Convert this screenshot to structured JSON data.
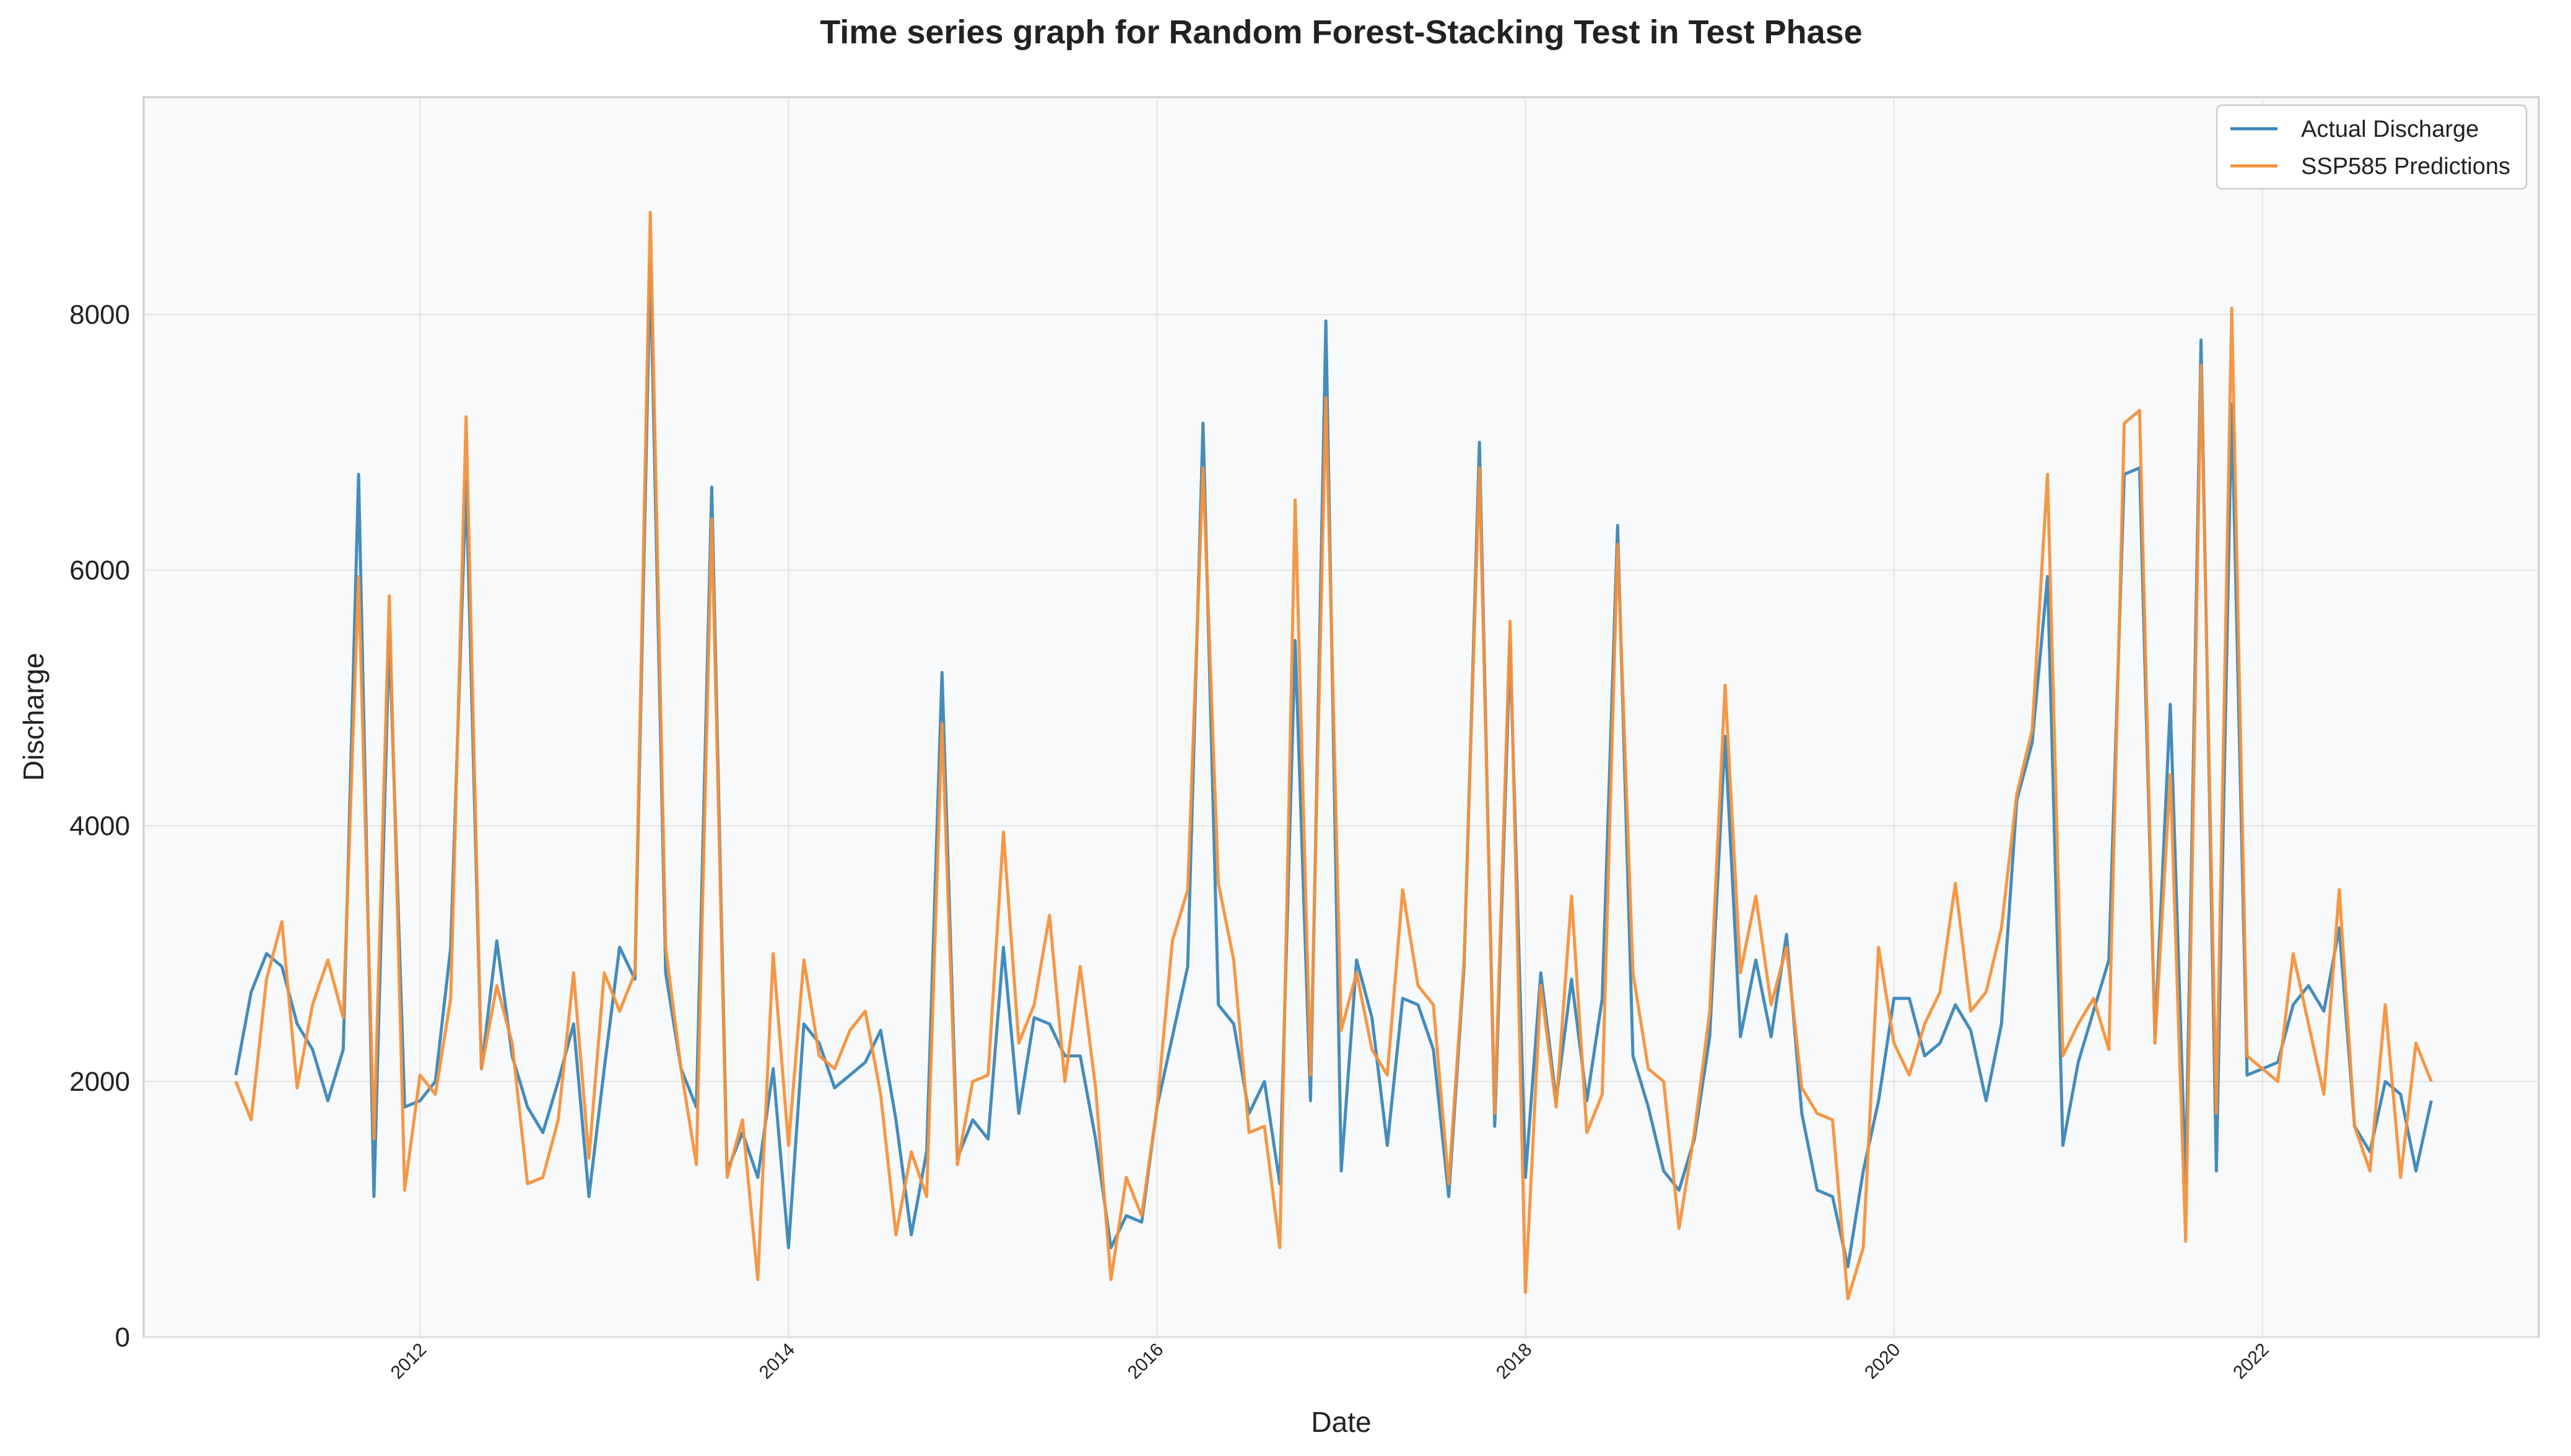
{
  "chart_data": {
    "type": "line",
    "title": "Time series graph for Random Forest-Stacking Test in Test Phase",
    "xlabel": "Date",
    "ylabel": "Discharge",
    "x_start": "2011-01",
    "x_ticks": [
      "2012",
      "2014",
      "2016",
      "2018",
      "2020",
      "2022"
    ],
    "xlim": [
      "2010-07",
      "2023-07"
    ],
    "ylim": [
      0,
      9700
    ],
    "y_ticks": [
      "0",
      "2000",
      "4000",
      "6000",
      "8000"
    ],
    "grid": true,
    "legend_position": "top-right",
    "series": [
      {
        "name": "Actual Discharge",
        "color": "#3a86b8",
        "values": [
          2050,
          2700,
          3000,
          2900,
          2450,
          2250,
          1850,
          2250,
          6750,
          1100,
          5500,
          1800,
          1850,
          2000,
          3050,
          6700,
          2100,
          3100,
          2200,
          1800,
          1600,
          2000,
          2450,
          1100,
          2100,
          3050,
          2800,
          8400,
          2850,
          2100,
          1800,
          6650,
          1300,
          1600,
          1250,
          2100,
          700,
          2450,
          2300,
          1950,
          2050,
          2150,
          2400,
          1700,
          800,
          1450,
          5200,
          1400,
          1700,
          1550,
          3050,
          1750,
          2500,
          2450,
          2200,
          2200,
          1550,
          700,
          950,
          900,
          1800,
          2350,
          2900,
          7150,
          2600,
          2450,
          1750,
          2000,
          1200,
          5450,
          1850,
          7950,
          1300,
          2950,
          2500,
          1500,
          2650,
          2600,
          2250,
          1100,
          2900,
          7000,
          1650,
          5400,
          1250,
          2850,
          1850,
          2800,
          1850,
          2650,
          6350,
          2200,
          1800,
          1300,
          1150,
          1550,
          2350,
          4700,
          2350,
          2950,
          2350,
          3150,
          1750,
          1150,
          1100,
          550,
          1300,
          1850,
          2650,
          2650,
          2200,
          2300,
          2600,
          2400,
          1850,
          2450,
          4200,
          4650,
          5950,
          1500,
          2150,
          2550,
          2950,
          6750,
          6800,
          2350,
          4950,
          1200,
          7800,
          1300,
          7300,
          2050,
          2100,
          2150,
          2600,
          2750,
          2550,
          3200,
          1650,
          1450,
          2000,
          1900,
          1300,
          1850
        ]
      },
      {
        "name": "SSP585 Predictions",
        "color": "#f5913a",
        "values": [
          2000,
          1700,
          2800,
          3250,
          1950,
          2600,
          2950,
          2500,
          5950,
          1550,
          5800,
          1150,
          2050,
          1900,
          2650,
          7200,
          2100,
          2750,
          2300,
          1200,
          1250,
          1700,
          2850,
          1400,
          2850,
          2550,
          2850,
          8800,
          3050,
          2100,
          1350,
          6400,
          1250,
          1700,
          450,
          3000,
          1500,
          2950,
          2200,
          2100,
          2400,
          2550,
          1900,
          800,
          1450,
          1100,
          4800,
          1350,
          2000,
          2050,
          3950,
          2300,
          2600,
          3300,
          2000,
          2900,
          1950,
          450,
          1250,
          950,
          1800,
          3100,
          3500,
          6800,
          3550,
          2950,
          1600,
          1650,
          700,
          6550,
          2050,
          7350,
          2400,
          2850,
          2250,
          2050,
          3500,
          2750,
          2600,
          1200,
          2950,
          6800,
          1750,
          5600,
          350,
          2750,
          1800,
          3450,
          1600,
          1900,
          6200,
          2850,
          2100,
          2000,
          850,
          1600,
          2550,
          5100,
          2850,
          3450,
          2600,
          3050,
          1950,
          1750,
          1700,
          300,
          700,
          3050,
          2300,
          2050,
          2450,
          2700,
          3550,
          2550,
          2700,
          3200,
          4250,
          4750,
          6750,
          2200,
          2450,
          2650,
          2250,
          7150,
          7250,
          2300,
          4400,
          750,
          7600,
          1750,
          8050,
          2200,
          2100,
          2000,
          3000,
          2450,
          1900,
          3500,
          1650,
          1300,
          2600,
          1250,
          2300,
          2000
        ]
      }
    ]
  }
}
